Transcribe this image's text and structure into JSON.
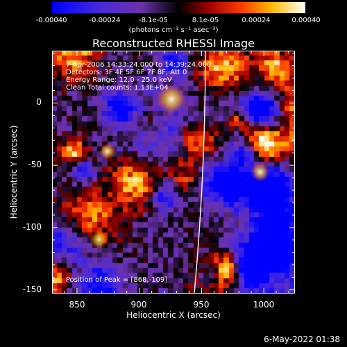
{
  "colorbar": {
    "tick_labels": [
      "-0.00040",
      "-0.00024",
      "-8.1e-05",
      "8.1e-05",
      "0.00024",
      "0.00040"
    ],
    "units": "(photons cm⁻² s⁻¹ asec⁻²)"
  },
  "title": "Reconstructed RHESSI Image",
  "info": {
    "time_range": "7-Apr-2006 14:33:24.000 to 14:39:24.000",
    "detectors": "Detectors: 3F 4F 5F 6F 7F 8F, Att 0",
    "energy": "Energy Range: 12.0 - 25.0 keV",
    "method": "Clean    Total counts: 1.13E+04",
    "peak": "Position of Peak = [868,-109]"
  },
  "axes": {
    "xlabel": "Heliocentric X (arcsec)",
    "ylabel": "Heliocentric Y (arcsec)",
    "xlim": [
      830,
      1025
    ],
    "ylim": [
      -153,
      42
    ],
    "xticks": [
      "850",
      "900",
      "950",
      "1000"
    ],
    "yticks": [
      "0",
      "-50",
      "-100",
      "-150"
    ]
  },
  "timestamp": "6-May-2022 01:38",
  "colors": {
    "background": "#000000",
    "text": "#ffffff",
    "limb": "#ffffff"
  }
}
